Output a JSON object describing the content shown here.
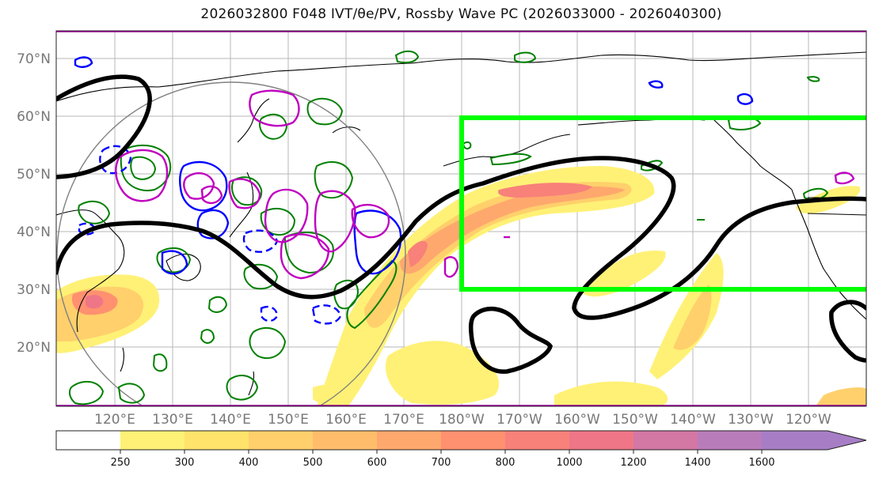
{
  "title": "2026032800 F048 IVT/θe/PV, Rossby Wave PC (2026033000 - 2026040300)",
  "lat_labels": [
    "70°N",
    "60°N",
    "50°N",
    "40°N",
    "30°N",
    "20°N"
  ],
  "lon_labels": [
    "120°E",
    "130°E",
    "140°E",
    "150°E",
    "160°E",
    "170°E",
    "180°W",
    "170°W",
    "160°W",
    "150°W",
    "140°W",
    "130°W",
    "120°W"
  ],
  "colorbar": {
    "ticks": [
      "250",
      "300",
      "400",
      "500",
      "600",
      "700",
      "800",
      "1000",
      "1200",
      "1400",
      "1600"
    ],
    "colors": [
      "#ffffff",
      "#fff176",
      "#ffe36b",
      "#ffd06c",
      "#ffbd6c",
      "#ffa86e",
      "#ff9070",
      "#f8817a",
      "#ef7686",
      "#d377a4",
      "#b97cbb",
      "#a77ec6"
    ]
  },
  "colors": {
    "trough_contour": "#000000",
    "box": "#00ff00",
    "theta_e": "#008000",
    "pv_positive": "#0000ff",
    "pv_negative": "#bf00bf",
    "circle": "#808080"
  }
}
